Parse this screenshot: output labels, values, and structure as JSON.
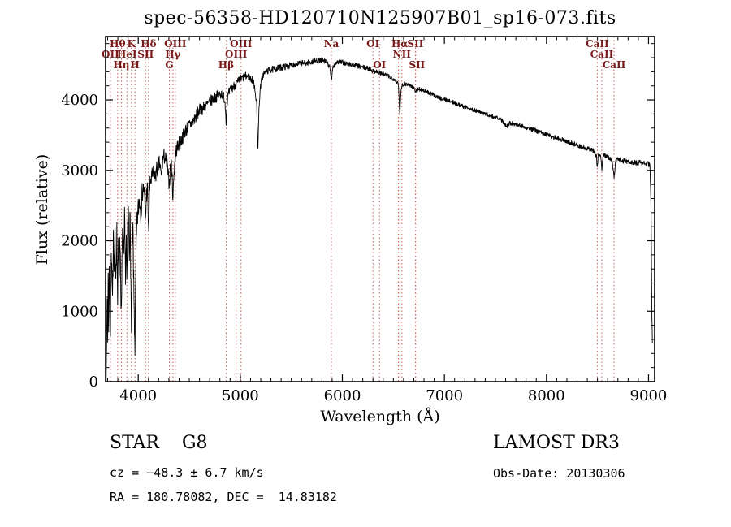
{
  "chart_data": {
    "type": "line",
    "title": "spec-56358-HD120710N125907B01_sp16-073.fits",
    "xlabel": "Wavelength (Å)",
    "ylabel": "Flux (relative)",
    "xlim": [
      3680,
      9060
    ],
    "ylim": [
      0,
      4900
    ],
    "x_ticks": [
      4000,
      5000,
      6000,
      7000,
      8000,
      9000
    ],
    "y_ticks": [
      0,
      1000,
      2000,
      3000,
      4000
    ],
    "x_minor_step": 100,
    "y_minor_step": 200,
    "grid": false,
    "legend": "none",
    "spectrum_color": "#000000",
    "marker_color": "#c4605c",
    "label_color": "#7a1a1a",
    "spectral_lines": [
      {
        "label": "Hθ",
        "wavelength": 3798,
        "row": 1
      },
      {
        "label": "K",
        "wavelength": 3933,
        "row": 1
      },
      {
        "label": "Hδ",
        "wavelength": 4101,
        "row": 1
      },
      {
        "label": "OIII",
        "wavelength": 4363,
        "row": 1
      },
      {
        "label": "OIII",
        "wavelength": 5007,
        "row": 1
      },
      {
        "label": "Na",
        "wavelength": 5892,
        "row": 1
      },
      {
        "label": "OI",
        "wavelength": 6300,
        "row": 1
      },
      {
        "label": "Hα",
        "wavelength": 6563,
        "row": 1
      },
      {
        "label": "SII",
        "wavelength": 6716,
        "row": 1
      },
      {
        "label": "CaII",
        "wavelength": 8498,
        "row": 1
      },
      {
        "label": "OII",
        "wavelength": 3727,
        "row": 2
      },
      {
        "label": "HeI",
        "wavelength": 3889,
        "row": 2
      },
      {
        "label": "SII",
        "wavelength": 4072,
        "row": 2
      },
      {
        "label": "Hγ",
        "wavelength": 4340,
        "row": 2
      },
      {
        "label": "OIII",
        "wavelength": 4959,
        "row": 2
      },
      {
        "label": "",
        "wavelength": 6548,
        "row": 2
      },
      {
        "label": "NII",
        "wavelength": 6583,
        "row": 2
      },
      {
        "label": "CaII",
        "wavelength": 8542,
        "row": 2
      },
      {
        "label": "Hη",
        "wavelength": 3835,
        "row": 3
      },
      {
        "label": "H",
        "wavelength": 3968,
        "row": 3
      },
      {
        "label": "G",
        "wavelength": 4305,
        "row": 3
      },
      {
        "label": "Hβ",
        "wavelength": 4861,
        "row": 3
      },
      {
        "label": "OI",
        "wavelength": 6364,
        "row": 3
      },
      {
        "label": "SII",
        "wavelength": 6731,
        "row": 3
      },
      {
        "label": "CaII",
        "wavelength": 8662,
        "row": 3
      }
    ],
    "noise_profile": [
      [
        3690,
        250
      ],
      [
        3950,
        230
      ],
      [
        4050,
        150
      ],
      [
        4300,
        110
      ],
      [
        4700,
        85
      ],
      [
        5100,
        55
      ],
      [
        5600,
        42
      ],
      [
        6200,
        35
      ],
      [
        6800,
        30
      ],
      [
        7400,
        30
      ],
      [
        8000,
        32
      ],
      [
        8600,
        35
      ],
      [
        9040,
        40
      ]
    ],
    "series": [
      {
        "name": "spectrum flux",
        "points": [
          [
            3688,
            100
          ],
          [
            3692,
            700
          ],
          [
            3696,
            1300
          ],
          [
            3700,
            600
          ],
          [
            3705,
            1500
          ],
          [
            3710,
            800
          ],
          [
            3716,
            1700
          ],
          [
            3722,
            1000
          ],
          [
            3727,
            600
          ],
          [
            3733,
            1500
          ],
          [
            3740,
            1900
          ],
          [
            3748,
            1200
          ],
          [
            3756,
            2000
          ],
          [
            3764,
            1400
          ],
          [
            3772,
            2100
          ],
          [
            3780,
            1500
          ],
          [
            3790,
            2200
          ],
          [
            3798,
            1100
          ],
          [
            3806,
            2000
          ],
          [
            3814,
            1600
          ],
          [
            3822,
            2100
          ],
          [
            3830,
            1300
          ],
          [
            3835,
            800
          ],
          [
            3842,
            1800
          ],
          [
            3850,
            2200
          ],
          [
            3858,
            1600
          ],
          [
            3866,
            2300
          ],
          [
            3874,
            1500
          ],
          [
            3882,
            2100
          ],
          [
            3889,
            1200
          ],
          [
            3896,
            2200
          ],
          [
            3904,
            2400
          ],
          [
            3912,
            1900
          ],
          [
            3920,
            2300
          ],
          [
            3928,
            1400
          ],
          [
            3933,
            600
          ],
          [
            3940,
            1700
          ],
          [
            3948,
            2200
          ],
          [
            3956,
            1300
          ],
          [
            3962,
            900
          ],
          [
            3968,
            500
          ],
          [
            3975,
            1400
          ],
          [
            3982,
            2000
          ],
          [
            3990,
            2300
          ],
          [
            4000,
            2450
          ],
          [
            4012,
            2600
          ],
          [
            4025,
            2400
          ],
          [
            4040,
            2700
          ],
          [
            4055,
            2750
          ],
          [
            4065,
            2500
          ],
          [
            4072,
            2300
          ],
          [
            4080,
            2650
          ],
          [
            4090,
            2750
          ],
          [
            4097,
            2400
          ],
          [
            4101,
            2050
          ],
          [
            4110,
            2700
          ],
          [
            4120,
            2850
          ],
          [
            4135,
            2900
          ],
          [
            4150,
            2950
          ],
          [
            4165,
            2900
          ],
          [
            4180,
            3000
          ],
          [
            4195,
            3050
          ],
          [
            4210,
            3100
          ],
          [
            4226,
            2900
          ],
          [
            4240,
            3150
          ],
          [
            4255,
            3200
          ],
          [
            4270,
            3150
          ],
          [
            4285,
            3050
          ],
          [
            4295,
            2900
          ],
          [
            4305,
            2800
          ],
          [
            4315,
            3050
          ],
          [
            4325,
            3100
          ],
          [
            4333,
            2850
          ],
          [
            4340,
            2600
          ],
          [
            4348,
            2900
          ],
          [
            4356,
            3100
          ],
          [
            4363,
            3200
          ],
          [
            4375,
            3300
          ],
          [
            4390,
            3350
          ],
          [
            4410,
            3400
          ],
          [
            4430,
            3450
          ],
          [
            4455,
            3550
          ],
          [
            4480,
            3600
          ],
          [
            4510,
            3650
          ],
          [
            4540,
            3700
          ],
          [
            4570,
            3780
          ],
          [
            4600,
            3850
          ],
          [
            4630,
            3880
          ],
          [
            4660,
            3920
          ],
          [
            4690,
            3950
          ],
          [
            4720,
            4000
          ],
          [
            4750,
            4030
          ],
          [
            4780,
            4060
          ],
          [
            4810,
            4090
          ],
          [
            4835,
            4070
          ],
          [
            4850,
            3980
          ],
          [
            4861,
            3700
          ],
          [
            4872,
            3990
          ],
          [
            4885,
            4090
          ],
          [
            4900,
            4130
          ],
          [
            4920,
            4170
          ],
          [
            4940,
            4200
          ],
          [
            4960,
            4230
          ],
          [
            4980,
            4260
          ],
          [
            5000,
            4290
          ],
          [
            5020,
            4310
          ],
          [
            5040,
            4330
          ],
          [
            5060,
            4340
          ],
          [
            5080,
            4330
          ],
          [
            5100,
            4300
          ],
          [
            5120,
            4280
          ],
          [
            5140,
            4200
          ],
          [
            5160,
            3950
          ],
          [
            5168,
            3500
          ],
          [
            5172,
            3300
          ],
          [
            5178,
            3600
          ],
          [
            5185,
            3950
          ],
          [
            5195,
            4150
          ],
          [
            5210,
            4300
          ],
          [
            5230,
            4370
          ],
          [
            5250,
            4400
          ],
          [
            5280,
            4420
          ],
          [
            5310,
            4430
          ],
          [
            5340,
            4440
          ],
          [
            5370,
            4450
          ],
          [
            5400,
            4460
          ],
          [
            5430,
            4470
          ],
          [
            5460,
            4480
          ],
          [
            5490,
            4490
          ],
          [
            5520,
            4500
          ],
          [
            5550,
            4510
          ],
          [
            5580,
            4520
          ],
          [
            5610,
            4530
          ],
          [
            5640,
            4520
          ],
          [
            5670,
            4530
          ],
          [
            5700,
            4540
          ],
          [
            5730,
            4550
          ],
          [
            5760,
            4560
          ],
          [
            5790,
            4560
          ],
          [
            5820,
            4550
          ],
          [
            5850,
            4530
          ],
          [
            5875,
            4470
          ],
          [
            5892,
            4280
          ],
          [
            5908,
            4450
          ],
          [
            5925,
            4520
          ],
          [
            5945,
            4540
          ],
          [
            5970,
            4540
          ],
          [
            6000,
            4530
          ],
          [
            6030,
            4520
          ],
          [
            6060,
            4510
          ],
          [
            6090,
            4500
          ],
          [
            6120,
            4490
          ],
          [
            6150,
            4480
          ],
          [
            6180,
            4470
          ],
          [
            6210,
            4460
          ],
          [
            6240,
            4450
          ],
          [
            6270,
            4440
          ],
          [
            6300,
            4410
          ],
          [
            6330,
            4410
          ],
          [
            6364,
            4380
          ],
          [
            6400,
            4370
          ],
          [
            6430,
            4350
          ],
          [
            6460,
            4330
          ],
          [
            6490,
            4310
          ],
          [
            6515,
            4290
          ],
          [
            6535,
            4260
          ],
          [
            6550,
            4200
          ],
          [
            6563,
            3780
          ],
          [
            6576,
            4180
          ],
          [
            6590,
            4220
          ],
          [
            6610,
            4230
          ],
          [
            6640,
            4220
          ],
          [
            6670,
            4200
          ],
          [
            6700,
            4180
          ],
          [
            6716,
            4120
          ],
          [
            6724,
            4160
          ],
          [
            6731,
            4110
          ],
          [
            6740,
            4160
          ],
          [
            6760,
            4150
          ],
          [
            6790,
            4140
          ],
          [
            6820,
            4120
          ],
          [
            6850,
            4100
          ],
          [
            6880,
            4080
          ],
          [
            6910,
            4060
          ],
          [
            6940,
            4040
          ],
          [
            6970,
            4020
          ],
          [
            7000,
            4010
          ],
          [
            7040,
            3990
          ],
          [
            7080,
            3970
          ],
          [
            7120,
            3950
          ],
          [
            7160,
            3920
          ],
          [
            7200,
            3900
          ],
          [
            7240,
            3880
          ],
          [
            7280,
            3860
          ],
          [
            7320,
            3840
          ],
          [
            7360,
            3820
          ],
          [
            7400,
            3800
          ],
          [
            7440,
            3780
          ],
          [
            7480,
            3760
          ],
          [
            7520,
            3740
          ],
          [
            7560,
            3710
          ],
          [
            7590,
            3660
          ],
          [
            7615,
            3630
          ],
          [
            7640,
            3670
          ],
          [
            7680,
            3660
          ],
          [
            7720,
            3650
          ],
          [
            7760,
            3630
          ],
          [
            7800,
            3610
          ],
          [
            7840,
            3590
          ],
          [
            7880,
            3570
          ],
          [
            7920,
            3550
          ],
          [
            7960,
            3530
          ],
          [
            8000,
            3510
          ],
          [
            8040,
            3490
          ],
          [
            8080,
            3470
          ],
          [
            8120,
            3450
          ],
          [
            8160,
            3430
          ],
          [
            8200,
            3410
          ],
          [
            8240,
            3390
          ],
          [
            8280,
            3370
          ],
          [
            8320,
            3350
          ],
          [
            8360,
            3330
          ],
          [
            8400,
            3310
          ],
          [
            8440,
            3290
          ],
          [
            8470,
            3270
          ],
          [
            8490,
            3200
          ],
          [
            8498,
            3030
          ],
          [
            8508,
            3220
          ],
          [
            8520,
            3230
          ],
          [
            8535,
            3160
          ],
          [
            8542,
            2990
          ],
          [
            8552,
            3200
          ],
          [
            8570,
            3210
          ],
          [
            8595,
            3190
          ],
          [
            8620,
            3180
          ],
          [
            8645,
            3130
          ],
          [
            8662,
            2890
          ],
          [
            8680,
            3150
          ],
          [
            8710,
            3150
          ],
          [
            8740,
            3140
          ],
          [
            8770,
            3130
          ],
          [
            8800,
            3120
          ],
          [
            8830,
            3115
          ],
          [
            8860,
            3110
          ],
          [
            8890,
            3105
          ],
          [
            8920,
            3110
          ],
          [
            8950,
            3105
          ],
          [
            8980,
            3100
          ],
          [
            9000,
            3090
          ],
          [
            9015,
            3060
          ],
          [
            9025,
            2400
          ],
          [
            9033,
            900
          ],
          [
            9040,
            450
          ]
        ]
      }
    ]
  },
  "annotations": {
    "object_type": "STAR    G8",
    "survey": "LAMOST DR3",
    "cz": "cz = −48.3 ± 6.7 km/s",
    "obs_date": "Obs-Date: 20130306",
    "coords": "RA = 180.78082, DEC =  14.83182"
  }
}
